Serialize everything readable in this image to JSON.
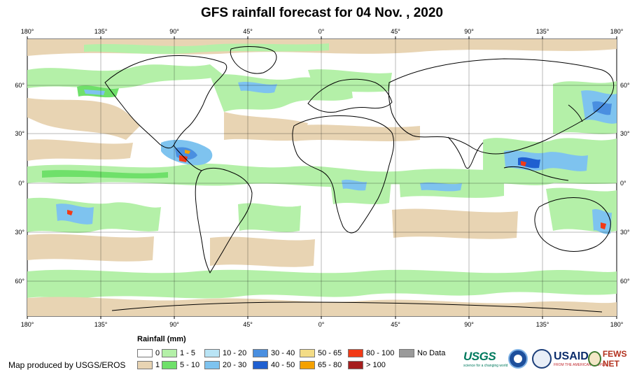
{
  "title": "GFS rainfall forecast for 04 Nov. , 2020",
  "credit": "Map produced by USGS/EROS",
  "axes": {
    "lon_labels": [
      "180°",
      "135°",
      "90°",
      "45°",
      "0°",
      "45°",
      "90°",
      "135°",
      "180°"
    ],
    "lat_labels_left": [
      "60°",
      "30°",
      "0°",
      "30°",
      "60°"
    ],
    "lat_labels_right": [
      "60°",
      "30°",
      "0°",
      "30°",
      "60°"
    ]
  },
  "legend": {
    "title": "Rainfall (mm)",
    "items": [
      {
        "label": "0",
        "color": "#ffffff"
      },
      {
        "label": "1",
        "color": "#e8d4b3"
      },
      {
        "label": "1 - 5",
        "color": "#b4f0a8"
      },
      {
        "label": "5 - 10",
        "color": "#6fe06a"
      },
      {
        "label": "10 - 20",
        "color": "#b9e4f5"
      },
      {
        "label": "20 - 30",
        "color": "#7ec3ef"
      },
      {
        "label": "30 - 40",
        "color": "#4a8fe0"
      },
      {
        "label": "40 - 50",
        "color": "#1f5fd0"
      },
      {
        "label": "50 - 65",
        "color": "#f3dc86"
      },
      {
        "label": "65 - 80",
        "color": "#f4a100"
      },
      {
        "label": "80 - 100",
        "color": "#f23a16"
      },
      {
        "label": "> 100",
        "color": "#a51e1e"
      },
      {
        "label": "No Data",
        "color": "#9a9a9a"
      }
    ]
  },
  "logos": {
    "usgs": "USGS",
    "usgs_tagline": "science for a changing world",
    "noaa": "noaa-logo",
    "usaid": "USAID",
    "usaid_tagline": "FROM THE AMERICAN PEOPLE",
    "fews": "FEWS NET"
  }
}
